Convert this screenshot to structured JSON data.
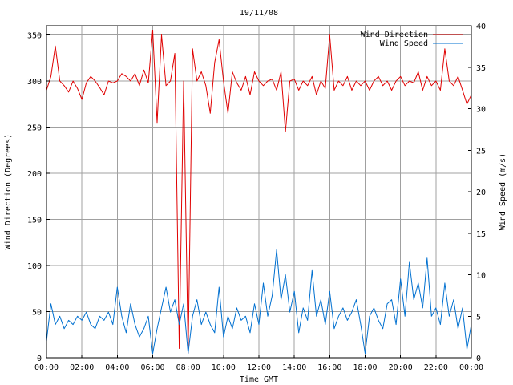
{
  "chart_data": {
    "type": "line",
    "title": "19/11/08",
    "xlabel": "Time GMT",
    "ylabel_left": "Wind Direction (Degrees)",
    "ylabel_right": "Wind Speed (m/s)",
    "x_ticks": [
      "00:00",
      "02:00",
      "04:00",
      "06:00",
      "08:00",
      "10:00",
      "12:00",
      "14:00",
      "16:00",
      "18:00",
      "20:00",
      "22:00",
      "00:00"
    ],
    "xlim_hours": [
      0,
      24
    ],
    "ylim_left": [
      0,
      360
    ],
    "yticks_left": [
      0,
      50,
      100,
      150,
      200,
      250,
      300,
      350
    ],
    "ylim_right": [
      0,
      40
    ],
    "yticks_right": [
      0,
      5,
      10,
      15,
      20,
      25,
      30,
      35,
      40
    ],
    "grid": true,
    "legend_position": "top-right",
    "series": [
      {
        "name": "Wind Direction",
        "axis": "left",
        "color": "#e00000",
        "x_hours": [
          0,
          0.25,
          0.5,
          0.75,
          1,
          1.25,
          1.5,
          1.75,
          2,
          2.25,
          2.5,
          2.75,
          3,
          3.25,
          3.5,
          3.75,
          4,
          4.25,
          4.5,
          4.75,
          5,
          5.25,
          5.5,
          5.75,
          6,
          6.25,
          6.5,
          6.75,
          7,
          7.25,
          7.5,
          7.75,
          8,
          8.25,
          8.5,
          8.75,
          9,
          9.25,
          9.5,
          9.75,
          10,
          10.25,
          10.5,
          10.75,
          11,
          11.25,
          11.5,
          11.75,
          12,
          12.25,
          12.5,
          12.75,
          13,
          13.25,
          13.5,
          13.75,
          14,
          14.25,
          14.5,
          14.75,
          15,
          15.25,
          15.5,
          15.75,
          16,
          16.25,
          16.5,
          16.75,
          17,
          17.25,
          17.5,
          17.75,
          18,
          18.25,
          18.5,
          18.75,
          19,
          19.25,
          19.5,
          19.75,
          20,
          20.25,
          20.5,
          20.75,
          21,
          21.25,
          21.5,
          21.75,
          22,
          22.25,
          22.5,
          22.75,
          23,
          23.25,
          23.5,
          23.75,
          24
        ],
        "values": [
          290,
          305,
          338,
          300,
          295,
          288,
          300,
          292,
          280,
          298,
          305,
          300,
          293,
          285,
          300,
          298,
          300,
          308,
          305,
          300,
          308,
          295,
          312,
          298,
          355,
          255,
          350,
          295,
          300,
          330,
          10,
          300,
          5,
          335,
          300,
          310,
          295,
          265,
          320,
          345,
          300,
          265,
          310,
          298,
          290,
          305,
          285,
          310,
          300,
          295,
          300,
          302,
          290,
          310,
          245,
          300,
          302,
          290,
          300,
          295,
          305,
          285,
          300,
          292,
          350,
          290,
          300,
          295,
          305,
          290,
          300,
          295,
          300,
          290,
          300,
          305,
          295,
          300,
          290,
          300,
          305,
          295,
          300,
          298,
          310,
          290,
          305,
          295,
          300,
          290,
          335,
          300,
          295,
          305,
          290,
          275,
          285
        ]
      },
      {
        "name": "Wind Speed",
        "axis": "right",
        "color": "#0070d0",
        "x_hours": [
          0,
          0.25,
          0.5,
          0.75,
          1,
          1.25,
          1.5,
          1.75,
          2,
          2.25,
          2.5,
          2.75,
          3,
          3.25,
          3.5,
          3.75,
          4,
          4.25,
          4.5,
          4.75,
          5,
          5.25,
          5.5,
          5.75,
          6,
          6.25,
          6.5,
          6.75,
          7,
          7.25,
          7.5,
          7.75,
          8,
          8.25,
          8.5,
          8.75,
          9,
          9.25,
          9.5,
          9.75,
          10,
          10.25,
          10.5,
          10.75,
          11,
          11.25,
          11.5,
          11.75,
          12,
          12.25,
          12.5,
          12.75,
          13,
          13.25,
          13.5,
          13.75,
          14,
          14.25,
          14.5,
          14.75,
          15,
          15.25,
          15.5,
          15.75,
          16,
          16.25,
          16.5,
          16.75,
          17,
          17.25,
          17.5,
          17.75,
          18,
          18.25,
          18.5,
          18.75,
          19,
          19.25,
          19.5,
          19.75,
          20,
          20.25,
          20.5,
          20.75,
          21,
          21.25,
          21.5,
          21.75,
          22,
          22.25,
          22.5,
          22.75,
          23,
          23.25,
          23.5,
          23.75,
          24
        ],
        "values": [
          2,
          6.5,
          4,
          5,
          3.5,
          4.5,
          4,
          5,
          4.5,
          5.5,
          4,
          3.5,
          5,
          4.5,
          5.5,
          4,
          8.5,
          5,
          3,
          6.5,
          4,
          2.5,
          3.5,
          5,
          0.5,
          3.5,
          6,
          8.5,
          5.5,
          7,
          4,
          6.5,
          0.5,
          5,
          7,
          4,
          5.5,
          4,
          3,
          8.5,
          2.5,
          5,
          3.5,
          6,
          4.5,
          5,
          3,
          6.5,
          4,
          9,
          5,
          7.5,
          13,
          7,
          10,
          5.5,
          8,
          3,
          6,
          4.5,
          10.5,
          5,
          7,
          4,
          8,
          3.5,
          5,
          6,
          4.5,
          5.5,
          7,
          4,
          0.5,
          5,
          6,
          4.5,
          3.5,
          6.5,
          7,
          4,
          9.5,
          5,
          11.5,
          7,
          9,
          6,
          12,
          5,
          6,
          4,
          9,
          5,
          7,
          3.5,
          6,
          1,
          4
        ]
      }
    ]
  }
}
